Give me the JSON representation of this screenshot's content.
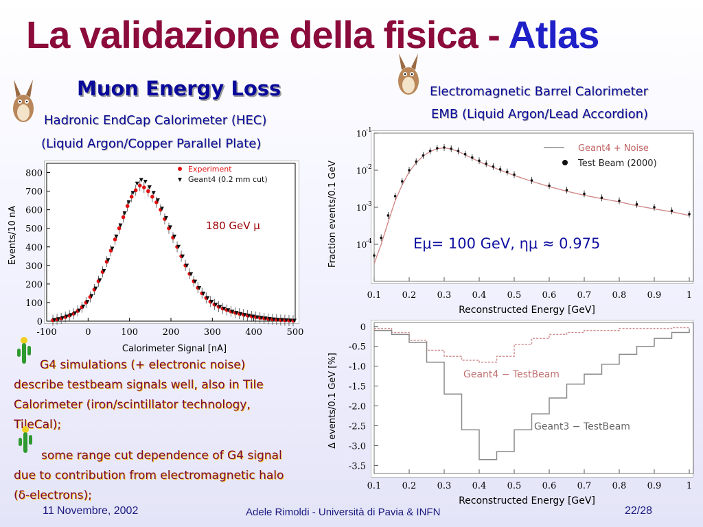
{
  "slide": {
    "title_main": "La validazione della fisica - ",
    "title_accent": "Atlas",
    "left_section_title": "Muon Energy Loss",
    "hec_line1": "Hadronic EndCap Calorimeter (HEC)",
    "hec_line2": "(Liquid Argon/Copper Parallel Plate)",
    "emb_line1": "Electromagnetic Barrel Calorimeter",
    "emb_line2": "EMB (Liquid Argon/Lead Accordion)",
    "bullet1": "G4 simulations (+ electronic noise) describe testbeam signals well, also in Tile Calorimeter (iron/scintillator technology, TileCal);",
    "bullet2": "some range cut dependence of G4 signal due to contribution from electromagnetic halo (δ-electrons);",
    "footer_date": "11 Novembre, 2002",
    "footer_author": "Adele Rimoldi  - Università di Pavia & INFN",
    "footer_page": "22/28",
    "icon_names": [
      "coyote-icon",
      "cactus-icon"
    ]
  },
  "chart_data": [
    {
      "type": "scatter",
      "xlabel": "Calorimeter Signal [nA]",
      "ylabel": "Events/10 nA",
      "xlim": [
        -100,
        500
      ],
      "ylim": [
        0,
        850
      ],
      "x_ticks": [
        "-100",
        "0",
        "100",
        "200",
        "300",
        "400",
        "500"
      ],
      "y_ticks": [
        "0",
        "100",
        "200",
        "300",
        "400",
        "500",
        "600",
        "700",
        "800"
      ],
      "annotation": "180 GeV μ",
      "legend": [
        "Experiment",
        "Geant4 (0.2 mm cut)"
      ],
      "series": [
        {
          "name": "Experiment",
          "color": "#e01010",
          "x": [
            -85,
            -75,
            -65,
            -55,
            -45,
            -35,
            -25,
            -15,
            -5,
            5,
            15,
            25,
            35,
            45,
            55,
            65,
            75,
            85,
            95,
            105,
            115,
            125,
            135,
            145,
            155,
            165,
            175,
            185,
            195,
            205,
            215,
            225,
            235,
            245,
            255,
            265,
            275,
            285,
            295,
            305,
            315,
            325,
            335,
            345,
            355,
            365,
            375,
            385,
            395,
            405,
            415,
            425,
            435,
            445,
            455,
            465,
            475,
            485,
            495
          ],
          "y": [
            5,
            10,
            15,
            22,
            30,
            40,
            55,
            75,
            100,
            130,
            170,
            215,
            265,
            320,
            380,
            440,
            500,
            560,
            620,
            670,
            705,
            730,
            720,
            700,
            670,
            640,
            600,
            550,
            500,
            450,
            400,
            350,
            300,
            255,
            215,
            180,
            150,
            125,
            105,
            90,
            78,
            68,
            60,
            52,
            45,
            40,
            35,
            30,
            26,
            22,
            18,
            15,
            12,
            10,
            8,
            6,
            5,
            4,
            3
          ]
        },
        {
          "name": "Geant4 (0.2 mm cut)",
          "color": "#111111",
          "x": [
            -85,
            -75,
            -65,
            -55,
            -45,
            -35,
            -25,
            -15,
            -5,
            5,
            15,
            25,
            35,
            45,
            55,
            65,
            75,
            85,
            95,
            105,
            115,
            125,
            135,
            145,
            155,
            165,
            175,
            185,
            195,
            205,
            215,
            225,
            235,
            245,
            255,
            265,
            275,
            285,
            295,
            305,
            315,
            325,
            335,
            345,
            355,
            365,
            375,
            385,
            395,
            405,
            415,
            425,
            435,
            445,
            455,
            465,
            475,
            485,
            495
          ],
          "y": [
            6,
            10,
            16,
            24,
            32,
            42,
            57,
            78,
            103,
            135,
            175,
            220,
            270,
            328,
            390,
            455,
            515,
            580,
            640,
            690,
            740,
            760,
            750,
            720,
            690,
            650,
            605,
            555,
            505,
            455,
            400,
            348,
            298,
            252,
            212,
            178,
            148,
            124,
            104,
            88,
            76,
            66,
            58,
            50,
            44,
            38,
            33,
            28,
            24,
            20,
            17,
            14,
            11,
            9,
            7,
            6,
            4,
            3,
            2
          ]
        }
      ]
    },
    {
      "type": "line",
      "xlabel": "Reconstructed Energy [GeV]",
      "ylabel": "Fraction events/0.1 GeV",
      "annotation": "Eμ= 100 GeV, ημ ≈ 0.975",
      "xlim": [
        0.1,
        1.0
      ],
      "ylim_log10": [
        -5,
        -1
      ],
      "x_ticks": [
        "0.1",
        "0.2",
        "0.3",
        "0.4",
        "0.5",
        "0.6",
        "0.7",
        "0.8",
        "0.9",
        "1"
      ],
      "y_tick_exponents": [
        "-1",
        "-2",
        "-3",
        "-4"
      ],
      "series": [
        {
          "name": "Geant4 + Noise",
          "color": "#d08a8a",
          "x": [
            0.1,
            0.12,
            0.14,
            0.16,
            0.18,
            0.2,
            0.22,
            0.24,
            0.26,
            0.28,
            0.3,
            0.32,
            0.34,
            0.36,
            0.38,
            0.4,
            0.42,
            0.44,
            0.46,
            0.48,
            0.5,
            0.55,
            0.6,
            0.65,
            0.7,
            0.75,
            0.8,
            0.85,
            0.9,
            0.95,
            1.0
          ],
          "y": [
            3e-05,
            0.0001,
            0.0004,
            0.0015,
            0.004,
            0.009,
            0.016,
            0.024,
            0.032,
            0.038,
            0.04,
            0.037,
            0.032,
            0.026,
            0.021,
            0.017,
            0.014,
            0.012,
            0.01,
            0.0085,
            0.0072,
            0.005,
            0.0036,
            0.0027,
            0.0021,
            0.0017,
            0.0014,
            0.0011,
            0.0009,
            0.00075,
            0.0006
          ]
        },
        {
          "name": "Test Beam (2000)",
          "color": "#111111",
          "x": [
            0.1,
            0.12,
            0.14,
            0.16,
            0.18,
            0.2,
            0.22,
            0.24,
            0.26,
            0.28,
            0.3,
            0.32,
            0.34,
            0.36,
            0.38,
            0.4,
            0.42,
            0.44,
            0.46,
            0.48,
            0.5,
            0.55,
            0.6,
            0.65,
            0.7,
            0.75,
            0.8,
            0.85,
            0.9,
            0.95,
            1.0
          ],
          "y": [
            5e-05,
            0.00015,
            0.0006,
            0.002,
            0.005,
            0.01,
            0.017,
            0.025,
            0.033,
            0.039,
            0.041,
            0.038,
            0.033,
            0.027,
            0.022,
            0.018,
            0.015,
            0.0125,
            0.0105,
            0.009,
            0.0076,
            0.0053,
            0.0038,
            0.0029,
            0.0023,
            0.0018,
            0.0015,
            0.0012,
            0.001,
            0.0008,
            0.00065
          ]
        }
      ]
    },
    {
      "type": "line",
      "xlabel": "Reconstructed Energy [GeV]",
      "ylabel": "Δ events/0.1 GeV [%]",
      "xlim": [
        0.1,
        1.0
      ],
      "ylim": [
        -3.7,
        0.1
      ],
      "x_ticks": [
        "0.1",
        "0.2",
        "0.3",
        "0.4",
        "0.5",
        "0.6",
        "0.7",
        "0.8",
        "0.9",
        "1"
      ],
      "y_ticks": [
        "0",
        "-0.5",
        "-1.0",
        "-1.5",
        "-2.0",
        "-2.5",
        "-3.0",
        "-3.5"
      ],
      "series": [
        {
          "name": "Geant4 − TestBeam",
          "color": "#d09090",
          "x": [
            0.1,
            0.15,
            0.2,
            0.25,
            0.3,
            0.35,
            0.4,
            0.45,
            0.5,
            0.55,
            0.6,
            0.65,
            0.7,
            0.75,
            0.8,
            0.85,
            0.9,
            0.95,
            1.0
          ],
          "y": [
            -0.05,
            -0.15,
            -0.35,
            -0.6,
            -0.75,
            -0.85,
            -0.9,
            -0.75,
            -0.45,
            -0.3,
            -0.2,
            -0.15,
            -0.1,
            -0.1,
            -0.05,
            -0.05,
            -0.05,
            -0.03,
            -0.02
          ]
        },
        {
          "name": "Geant3 − TestBeam",
          "color": "#8a8a8a",
          "x": [
            0.1,
            0.15,
            0.2,
            0.25,
            0.3,
            0.35,
            0.4,
            0.45,
            0.5,
            0.55,
            0.6,
            0.65,
            0.7,
            0.75,
            0.8,
            0.85,
            0.9,
            0.95,
            1.0
          ],
          "y": [
            -0.1,
            -0.2,
            -0.4,
            -0.9,
            -1.7,
            -2.6,
            -3.35,
            -3.15,
            -2.6,
            -2.2,
            -1.8,
            -1.45,
            -1.2,
            -0.95,
            -0.7,
            -0.5,
            -0.3,
            -0.15,
            -0.05
          ]
        }
      ]
    }
  ]
}
